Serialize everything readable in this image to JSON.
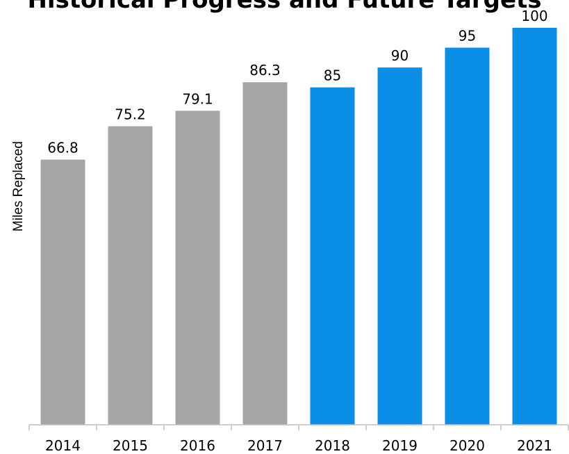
{
  "chart_data": {
    "type": "bar",
    "title": "Historical Progress and Future Targets",
    "xlabel": "",
    "ylabel": "Miles Replaced",
    "categories": [
      "2014",
      "2015",
      "2016",
      "2017",
      "2018",
      "2019",
      "2020",
      "2021"
    ],
    "values": [
      66.8,
      75.2,
      79.1,
      86.3,
      85,
      90,
      95,
      100
    ],
    "data_labels": [
      "66.8",
      "75.2",
      "79.1",
      "86.3",
      "85",
      "90",
      "95",
      "100"
    ],
    "ylim": [
      0,
      100
    ],
    "grid": false,
    "legend": "none",
    "bar_colors": [
      "#a6a6a6",
      "#a6a6a6",
      "#a6a6a6",
      "#a6a6a6",
      "#0a8ee8",
      "#0a8ee8",
      "#0a8ee8",
      "#0a8ee8"
    ],
    "axis_color": "#bfbfbf"
  }
}
